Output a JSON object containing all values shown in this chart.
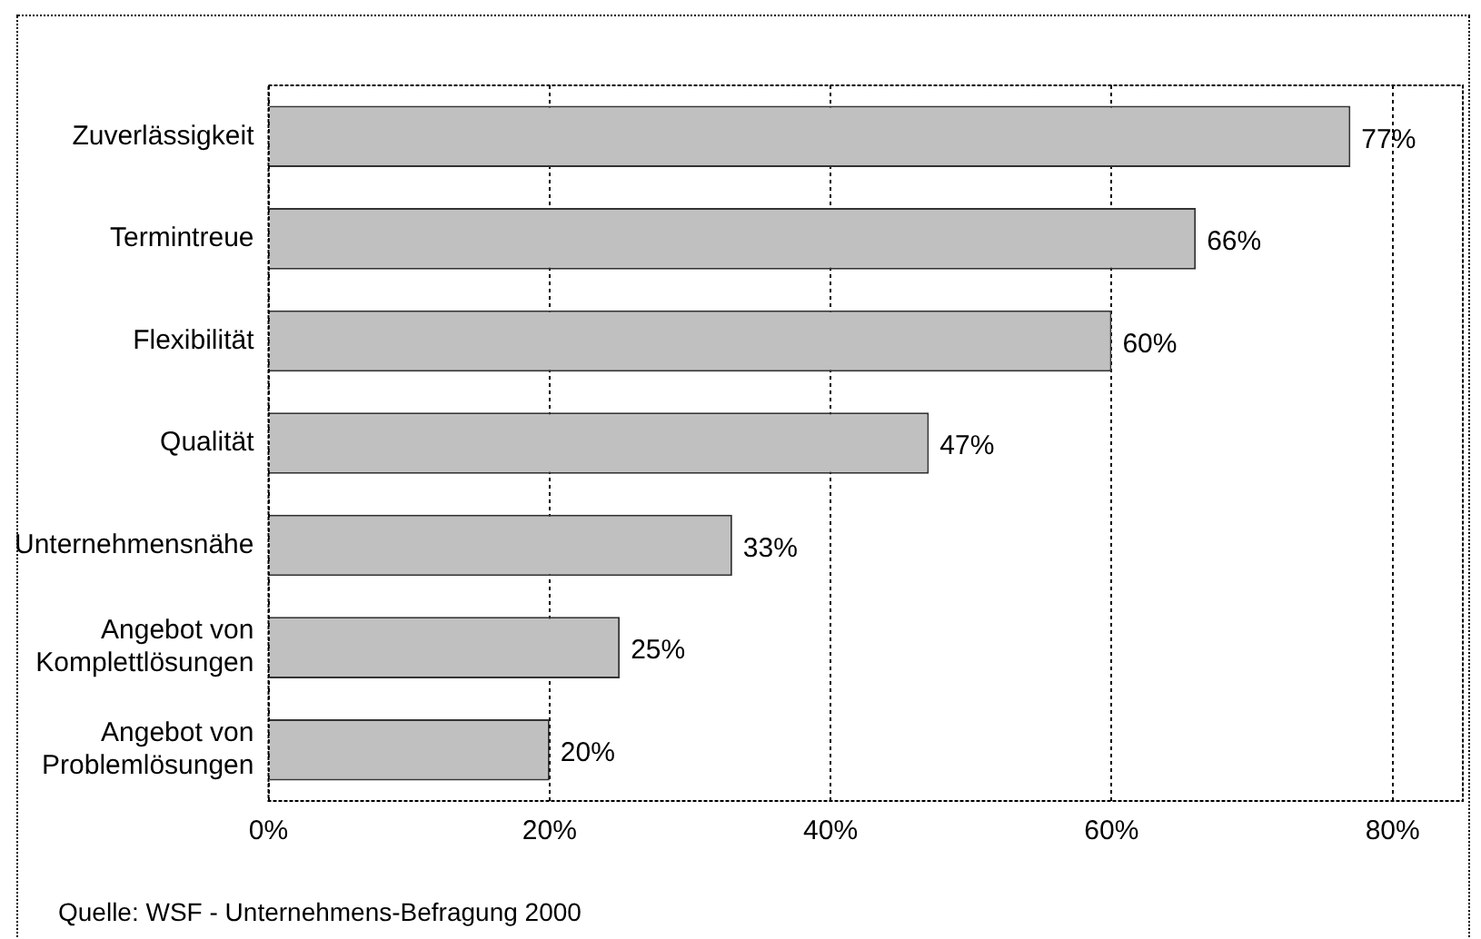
{
  "chart_data": {
    "type": "bar",
    "orientation": "horizontal",
    "categories": [
      "Zuverlässigkeit",
      "Termintreue",
      "Flexibilität",
      "Qualität",
      "Unternehmensnähe",
      "Angebot von\nKomplettlösungen",
      "Angebot von\nProblemlösungen"
    ],
    "values": [
      77,
      66,
      60,
      47,
      33,
      25,
      20
    ],
    "color": "#c0c0c0",
    "value_labels": [
      "77%",
      "66%",
      "60%",
      "47%",
      "33%",
      "25%",
      "20%"
    ],
    "xlim": [
      0,
      85
    ],
    "xticks": [
      {
        "value": 0,
        "label": "0%"
      },
      {
        "value": 20,
        "label": "20%"
      },
      {
        "value": 40,
        "label": "40%"
      },
      {
        "value": 60,
        "label": "60%"
      },
      {
        "value": 80,
        "label": "80%"
      }
    ],
    "grid": "x",
    "legend": false,
    "annotations": [
      "Quelle: WSF - Unternehmens-Befragung 2000"
    ]
  }
}
